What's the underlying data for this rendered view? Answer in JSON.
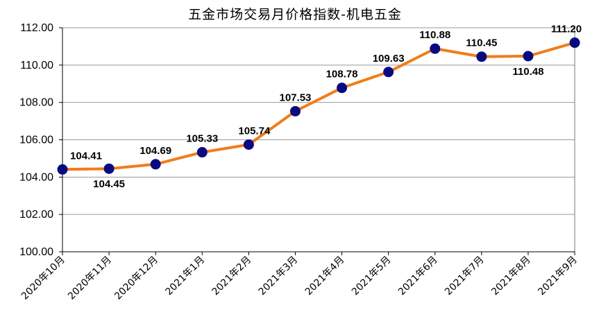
{
  "chart_data": {
    "type": "line",
    "title": "五金市场交易月价格指数-机电五金",
    "xlabel": "",
    "ylabel": "",
    "categories": [
      "2020年10月",
      "2020年11月",
      "2020年12月",
      "2021年1月",
      "2021年2月",
      "2021年3月",
      "2021年4月",
      "2021年5月",
      "2021年6月",
      "2021年7月",
      "2021年8月",
      "2021年9月"
    ],
    "values": [
      104.41,
      104.45,
      104.69,
      105.33,
      105.74,
      107.53,
      108.78,
      109.63,
      110.88,
      110.45,
      110.48,
      111.2
    ],
    "data_labels": [
      "104.41",
      "104.45",
      "104.69",
      "105.33",
      "105.74",
      "107.53",
      "108.78",
      "109.63",
      "110.88",
      "110.45",
      "110.48",
      "111.20"
    ],
    "ylim": [
      100,
      112
    ],
    "y_ticks": [
      "100.00",
      "102.00",
      "104.00",
      "106.00",
      "108.00",
      "110.00",
      "112.00"
    ],
    "grid": true,
    "legend": "none",
    "colors": {
      "line": "#F07D1A",
      "marker": "#0A0A80",
      "grid": "#999999"
    }
  }
}
